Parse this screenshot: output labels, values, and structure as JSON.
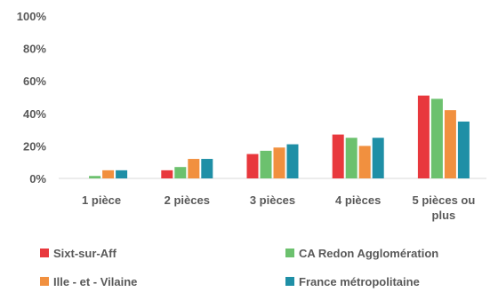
{
  "chart_data": {
    "type": "bar",
    "categories": [
      [
        "1 pièce"
      ],
      [
        "2 pièces"
      ],
      [
        "3 pièces"
      ],
      [
        "4 pièces"
      ],
      [
        "5 pièces ou",
        "plus"
      ]
    ],
    "series": [
      {
        "name": "Sixt-sur-Aff",
        "color": "#E8383D",
        "values": [
          0,
          5,
          15,
          27,
          51
        ]
      },
      {
        "name": "CA Redon Agglomération",
        "color": "#6CC16E",
        "values": [
          1.5,
          7,
          17,
          25,
          49
        ]
      },
      {
        "name": "Ille - et - Vilaine",
        "color": "#F1903F",
        "values": [
          5,
          12,
          19,
          20,
          42
        ]
      },
      {
        "name": "France métropolitaine",
        "color": "#1F8FA6",
        "values": [
          5,
          12,
          21,
          25,
          35
        ]
      }
    ],
    "ylim": [
      0,
      100
    ],
    "yticks": [
      "0%",
      "20%",
      "40%",
      "60%",
      "80%",
      "100%"
    ],
    "ytick_values": [
      0,
      20,
      40,
      60,
      80,
      100
    ],
    "grid": false,
    "legend_position": "bottom"
  }
}
